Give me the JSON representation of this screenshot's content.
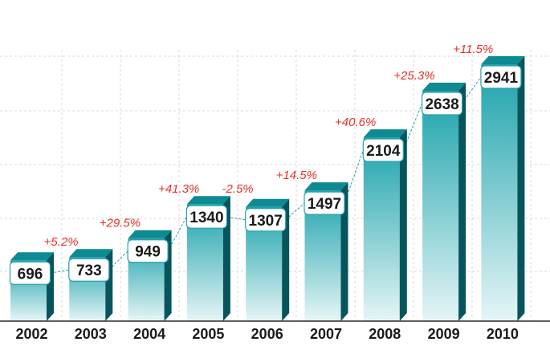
{
  "chart_data": {
    "type": "bar",
    "categories": [
      "2002",
      "2003",
      "2004",
      "2005",
      "2006",
      "2007",
      "2008",
      "2009",
      "2010"
    ],
    "values": [
      696,
      733,
      949,
      1340,
      1307,
      1497,
      2104,
      2638,
      2941
    ],
    "growth_labels": [
      "+5.2%",
      "+29.5%",
      "+41.3%",
      "-2.5%",
      "+14.5%",
      "+40.6%",
      "+25.3%",
      "+11.5%"
    ],
    "ylim": [
      0,
      3000
    ],
    "grid": true,
    "colors": {
      "bar_front_top": "#1aa2ab",
      "bar_front_bottom": "#e6f5f6",
      "bar_top": "#0e8a93",
      "bar_side": "#06555c",
      "growth_text": "#e8322a",
      "grid": "#d8d8d8",
      "connector": "#2a9fb0"
    }
  }
}
